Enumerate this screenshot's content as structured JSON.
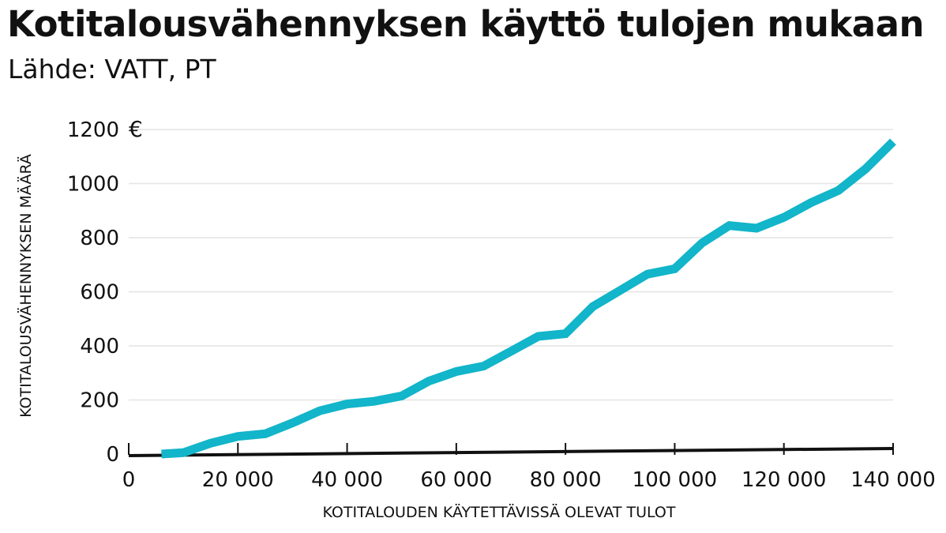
{
  "title": "Kotitalousvähennyksen käyttö tulojen mukaan",
  "subtitle": "Lähde: VATT, PT",
  "chart_data": {
    "type": "line",
    "title": "Kotitalousvähennyksen käyttö tulojen mukaan",
    "subtitle": "Lähde: VATT, PT",
    "xlabel": "KOTITALOUDEN KÄYTETTÄVISSÄ OLEVAT TULOT",
    "ylabel": "KOTITALOUSVÄHENNYKSEN MÄÄRÄ",
    "y_unit": "€",
    "xlim": [
      0,
      140000
    ],
    "ylim": [
      0,
      1200
    ],
    "x_ticks": [
      0,
      20000,
      40000,
      60000,
      80000,
      100000,
      120000,
      140000
    ],
    "x_tick_labels": [
      "0",
      "20 000",
      "40 000",
      "60 000",
      "80 000",
      "100 000",
      "120 000",
      "140 000"
    ],
    "y_ticks": [
      0,
      200,
      400,
      600,
      800,
      1000,
      1200
    ],
    "y_tick_labels": [
      "0",
      "200",
      "400",
      "600",
      "800",
      "1000",
      "1200"
    ],
    "grid": "horizontal",
    "line_color": "#12b5c9",
    "axis_color": "#111111",
    "grid_color": "#e4e4e4",
    "series": [
      {
        "x": [
          6000,
          10000,
          15000,
          20000,
          25000,
          30000,
          35000,
          40000,
          45000,
          50000,
          55000,
          60000,
          65000,
          70000,
          75000,
          80000,
          85000,
          90000,
          95000,
          100000,
          105000,
          110000,
          115000,
          120000,
          125000,
          130000,
          135000,
          140000
        ],
        "y": [
          0,
          5,
          40,
          65,
          75,
          115,
          160,
          185,
          195,
          215,
          270,
          305,
          325,
          380,
          435,
          445,
          545,
          605,
          665,
          685,
          780,
          845,
          835,
          875,
          930,
          975,
          1055,
          1155
        ]
      }
    ]
  }
}
